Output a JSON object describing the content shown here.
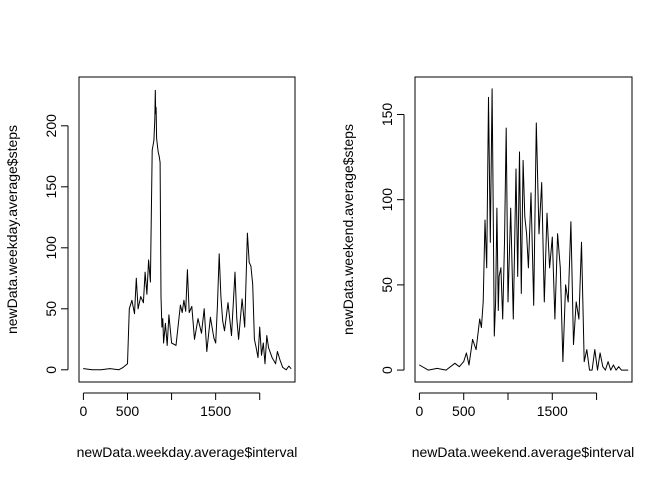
{
  "chart_data": [
    {
      "type": "line",
      "xlabel": "newData.weekday.average$interval",
      "ylabel": "newData.weekday.average$steps",
      "xlim": [
        -50,
        2400
      ],
      "ylim": [
        -10,
        240
      ],
      "x_ticks": [
        {
          "value": 0,
          "label": "0"
        },
        {
          "value": 500,
          "label": "500"
        },
        {
          "value": 1000,
          "label": ""
        },
        {
          "value": 1500,
          "label": "1500"
        },
        {
          "value": 2000,
          "label": ""
        }
      ],
      "y_ticks": [
        0,
        50,
        100,
        150,
        200
      ],
      "x": [
        0,
        100,
        200,
        300,
        400,
        450,
        500,
        520,
        550,
        580,
        600,
        620,
        650,
        680,
        700,
        720,
        740,
        760,
        780,
        800,
        810,
        815,
        820,
        825,
        830,
        840,
        850,
        860,
        870,
        880,
        890,
        900,
        910,
        930,
        950,
        970,
        1000,
        1050,
        1100,
        1120,
        1140,
        1160,
        1180,
        1200,
        1230,
        1260,
        1300,
        1340,
        1370,
        1400,
        1440,
        1480,
        1500,
        1520,
        1540,
        1560,
        1580,
        1600,
        1640,
        1680,
        1720,
        1740,
        1760,
        1800,
        1830,
        1860,
        1880,
        1900,
        1920,
        1940,
        1960,
        1980,
        2000,
        2020,
        2040,
        2060,
        2080,
        2100,
        2140,
        2180,
        2200,
        2230,
        2260,
        2300,
        2330,
        2355
      ],
      "y": [
        1,
        0,
        0,
        1,
        0,
        2,
        5,
        50,
        57,
        46,
        75,
        50,
        60,
        55,
        80,
        62,
        90,
        72,
        180,
        188,
        205,
        229,
        210,
        215,
        190,
        183,
        178,
        175,
        170,
        60,
        35,
        42,
        22,
        38,
        20,
        45,
        22,
        20,
        53,
        47,
        57,
        48,
        82,
        47,
        52,
        25,
        42,
        30,
        50,
        15,
        43,
        26,
        22,
        52,
        95,
        60,
        40,
        32,
        55,
        28,
        80,
        42,
        25,
        58,
        35,
        112,
        88,
        85,
        70,
        25,
        18,
        10,
        35,
        12,
        22,
        5,
        28,
        18,
        10,
        5,
        15,
        8,
        2,
        0,
        3,
        1
      ]
    },
    {
      "type": "line",
      "xlabel": "newData.weekend.average$interval",
      "ylabel": "newData.weekend.average$steps",
      "xlim": [
        -50,
        2400
      ],
      "ylim": [
        -7,
        172
      ],
      "x_ticks": [
        {
          "value": 0,
          "label": "0"
        },
        {
          "value": 500,
          "label": "500"
        },
        {
          "value": 1000,
          "label": ""
        },
        {
          "value": 1500,
          "label": "1500"
        },
        {
          "value": 2000,
          "label": ""
        }
      ],
      "y_ticks": [
        0,
        50,
        100,
        150
      ],
      "x": [
        0,
        100,
        200,
        300,
        400,
        450,
        500,
        530,
        560,
        600,
        640,
        680,
        700,
        720,
        740,
        760,
        780,
        800,
        820,
        830,
        845,
        860,
        875,
        890,
        900,
        920,
        940,
        960,
        980,
        1000,
        1030,
        1060,
        1090,
        1110,
        1130,
        1150,
        1170,
        1190,
        1210,
        1230,
        1260,
        1290,
        1320,
        1350,
        1380,
        1410,
        1440,
        1470,
        1500,
        1530,
        1560,
        1590,
        1620,
        1650,
        1680,
        1710,
        1740,
        1770,
        1800,
        1830,
        1860,
        1890,
        1920,
        1950,
        1980,
        2010,
        2040,
        2070,
        2100,
        2130,
        2160,
        2190,
        2220,
        2250,
        2280,
        2310,
        2330,
        2355
      ],
      "y": [
        3,
        0,
        1,
        0,
        4,
        2,
        5,
        10,
        3,
        18,
        12,
        30,
        25,
        40,
        88,
        60,
        160,
        75,
        165,
        115,
        20,
        40,
        95,
        35,
        55,
        60,
        30,
        75,
        142,
        40,
        95,
        30,
        118,
        55,
        128,
        45,
        123,
        90,
        80,
        60,
        104,
        38,
        145,
        80,
        110,
        40,
        92,
        60,
        78,
        30,
        80,
        60,
        5,
        50,
        40,
        87,
        15,
        40,
        30,
        75,
        5,
        12,
        0,
        0,
        12,
        0,
        10,
        2,
        0,
        5,
        0,
        3,
        0,
        2,
        0,
        0,
        0,
        0
      ]
    }
  ]
}
